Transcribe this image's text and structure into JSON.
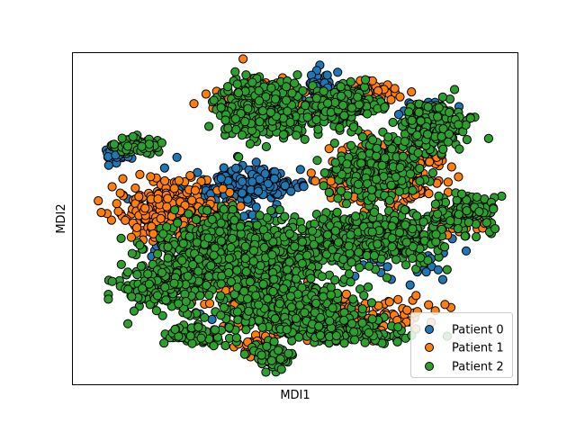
{
  "chart_data": {
    "type": "scatter",
    "title": "",
    "xlabel": "MDI1",
    "ylabel": "MDI2",
    "xticks": [],
    "yticks": [],
    "xlim": [
      0,
      100
    ],
    "ylim": [
      0,
      100
    ],
    "grid": false,
    "legend": {
      "position": "lower right"
    },
    "marker": {
      "shape": "circle",
      "edgecolor": "#000000"
    },
    "series": [
      {
        "name": "Patient 0",
        "color": "#1f77b4",
        "clusters": [
          {
            "x": 40,
            "y": 60,
            "sx": 9,
            "sy": 4,
            "n": 240
          },
          {
            "x": 10,
            "y": 69,
            "sx": 3,
            "sy": 2,
            "n": 30
          },
          {
            "x": 30,
            "y": 47,
            "sx": 9,
            "sy": 12,
            "n": 120
          },
          {
            "x": 55,
            "y": 90,
            "sx": 3,
            "sy": 4,
            "n": 40
          },
          {
            "x": 79,
            "y": 82,
            "sx": 4,
            "sy": 3,
            "n": 40
          },
          {
            "x": 74,
            "y": 40,
            "sx": 14,
            "sy": 7,
            "n": 60
          },
          {
            "x": 49,
            "y": 22,
            "sx": 13,
            "sy": 6,
            "n": 60
          }
        ]
      },
      {
        "name": "Patient 1",
        "color": "#ff7f0e",
        "clusters": [
          {
            "x": 22,
            "y": 52,
            "sx": 9,
            "sy": 7,
            "n": 380
          },
          {
            "x": 71,
            "y": 63,
            "sx": 11,
            "sy": 7,
            "n": 330
          },
          {
            "x": 57,
            "y": 21,
            "sx": 16,
            "sy": 5,
            "n": 280
          },
          {
            "x": 43,
            "y": 85,
            "sx": 9,
            "sy": 6,
            "n": 120
          },
          {
            "x": 66,
            "y": 87,
            "sx": 6,
            "sy": 3,
            "n": 80
          },
          {
            "x": 37,
            "y": 33,
            "sx": 12,
            "sy": 8,
            "n": 220
          },
          {
            "x": 88,
            "y": 51,
            "sx": 5,
            "sy": 4,
            "n": 70
          },
          {
            "x": 41,
            "y": 12,
            "sx": 4,
            "sy": 3,
            "n": 40
          }
        ]
      },
      {
        "name": "Patient 2",
        "color": "#2ca02c",
        "clusters": [
          {
            "x": 38,
            "y": 40,
            "sx": 16,
            "sy": 8,
            "n": 900
          },
          {
            "x": 68,
            "y": 44,
            "sx": 13,
            "sy": 6,
            "n": 500
          },
          {
            "x": 48,
            "y": 23,
            "sx": 12,
            "sy": 7,
            "n": 500
          },
          {
            "x": 43,
            "y": 83,
            "sx": 8,
            "sy": 7,
            "n": 380
          },
          {
            "x": 61,
            "y": 84,
            "sx": 6,
            "sy": 5,
            "n": 260
          },
          {
            "x": 68,
            "y": 65,
            "sx": 8,
            "sy": 7,
            "n": 300
          },
          {
            "x": 81,
            "y": 78,
            "sx": 6,
            "sy": 6,
            "n": 200
          },
          {
            "x": 14,
            "y": 72,
            "sx": 4,
            "sy": 2,
            "n": 90
          },
          {
            "x": 20,
            "y": 29,
            "sx": 8,
            "sy": 5,
            "n": 200
          },
          {
            "x": 88,
            "y": 52,
            "sx": 6,
            "sy": 4,
            "n": 130
          },
          {
            "x": 27,
            "y": 15,
            "sx": 5,
            "sy": 3,
            "n": 60
          },
          {
            "x": 45,
            "y": 9,
            "sx": 4,
            "sy": 3,
            "n": 60
          },
          {
            "x": 63,
            "y": 16,
            "sx": 9,
            "sy": 3,
            "n": 120
          }
        ]
      }
    ]
  }
}
